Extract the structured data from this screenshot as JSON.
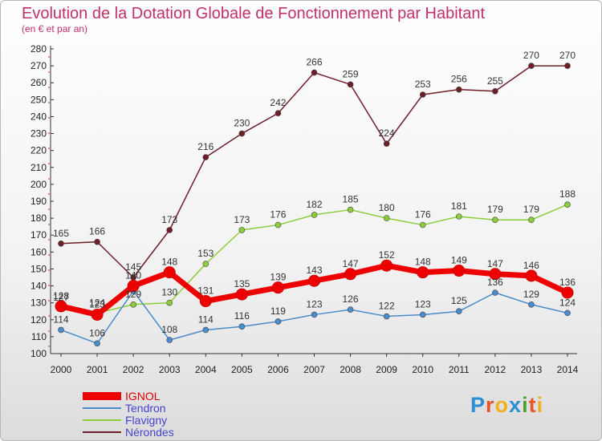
{
  "chart_data": {
    "type": "line",
    "title": "Evolution de la Dotation Globale de Fonctionnement par Habitant",
    "subtitle": "(en € et par an)",
    "xlabel": "",
    "ylabel": "",
    "ylim": [
      100,
      280
    ],
    "ytick_step": 10,
    "grid": false,
    "legend_position": "bottom-left",
    "categories": [
      "2000",
      "2001",
      "2002",
      "2003",
      "2004",
      "2005",
      "2006",
      "2007",
      "2008",
      "2009",
      "2010",
      "2011",
      "2012",
      "2013",
      "2014"
    ],
    "series": [
      {
        "name": "Nérondes",
        "color": "#6e1e28",
        "values": [
          165,
          166,
          145,
          173,
          216,
          230,
          242,
          266,
          259,
          224,
          253,
          256,
          255,
          270,
          270
        ],
        "labels": [
          "165",
          "166",
          "145",
          "173",
          "216",
          "230",
          "242",
          "266",
          "259",
          "224",
          "253",
          "256",
          "255",
          "270",
          "270"
        ]
      },
      {
        "name": "Flavigny",
        "color": "#8ccd3c",
        "values": [
          127,
          124,
          129,
          130,
          153,
          173,
          176,
          182,
          185,
          180,
          176,
          181,
          179,
          179,
          188
        ],
        "labels": [
          "127",
          "124",
          "129",
          "130",
          "153",
          "173",
          "176",
          "182",
          "185",
          "180",
          "176",
          "181",
          "179",
          "179",
          "188"
        ]
      },
      {
        "name": "Tendron",
        "color": "#4a8ccc",
        "values": [
          114,
          106,
          137,
          108,
          114,
          116,
          119,
          123,
          126,
          122,
          123,
          125,
          136,
          129,
          124
        ],
        "labels": [
          "114",
          "106",
          "",
          "108",
          "114",
          "116",
          "119",
          "123",
          "126",
          "122",
          "123",
          "125",
          "136",
          "129",
          "124"
        ]
      },
      {
        "name": "IGNOL",
        "color": "#ee0000",
        "values": [
          128,
          123,
          140,
          148,
          131,
          135,
          139,
          143,
          147,
          152,
          148,
          149,
          147,
          146,
          136
        ],
        "labels": [
          "128",
          "123",
          "140",
          "148",
          "131",
          "135",
          "139",
          "143",
          "147",
          "152",
          "148",
          "149",
          "147",
          "146",
          "136"
        ]
      }
    ],
    "legend": [
      "IGNOL",
      "Tendron",
      "Flavigny",
      "Nérondes"
    ]
  },
  "logo": {
    "letters": [
      "P",
      "r",
      "o",
      "x",
      "i",
      "t",
      "i"
    ],
    "colors": [
      "#2a8fd0",
      "#e8552a",
      "#f0b020",
      "#2a8fd0",
      "#4aa030",
      "#e8552a",
      "#f0b020"
    ]
  }
}
